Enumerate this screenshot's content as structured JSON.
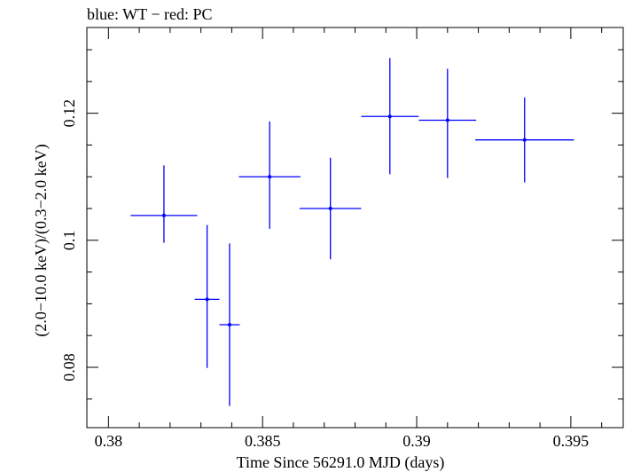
{
  "chart_data": {
    "type": "scatter",
    "title": "blue: WT − red: PC",
    "xlabel": "Time Since 56291.0 MJD (days)",
    "ylabel": "(2.0−10.0 keV)/(0.3−2.0 keV)",
    "xlim": [
      0.3793,
      0.3967
    ],
    "ylim": [
      0.0705,
      0.1335
    ],
    "xticks": [
      {
        "value": 0.38,
        "label": "0.38"
      },
      {
        "value": 0.385,
        "label": "0.385"
      },
      {
        "value": 0.39,
        "label": "0.39"
      },
      {
        "value": 0.395,
        "label": "0.395"
      }
    ],
    "yticks": [
      {
        "value": 0.08,
        "label": "0.08"
      },
      {
        "value": 0.1,
        "label": "0.1"
      },
      {
        "value": 0.12,
        "label": "0.12"
      }
    ],
    "x_minor_step": 0.001,
    "y_minor_step": 0.005,
    "grid": false,
    "series": [
      {
        "color": "#0000ff",
        "points": [
          {
            "x": 0.3818,
            "xerr_lo": 0.00108,
            "xerr_hi": 0.00108,
            "y": 0.1039,
            "yerr_lo": 0.0043,
            "yerr_hi": 0.0079
          },
          {
            "x": 0.3832,
            "xerr_lo": 0.0004,
            "xerr_hi": 0.0004,
            "y": 0.0907,
            "yerr_lo": 0.0108,
            "yerr_hi": 0.0117
          },
          {
            "x": 0.38393,
            "xerr_lo": 0.00033,
            "xerr_hi": 0.00033,
            "y": 0.0867,
            "yerr_lo": 0.0128,
            "yerr_hi": 0.0128
          },
          {
            "x": 0.38523,
            "xerr_lo": 0.001,
            "xerr_hi": 0.001,
            "y": 0.11,
            "yerr_lo": 0.0082,
            "yerr_hi": 0.0087
          },
          {
            "x": 0.3872,
            "xerr_lo": 0.001,
            "xerr_hi": 0.001,
            "y": 0.105,
            "yerr_lo": 0.008,
            "yerr_hi": 0.008
          },
          {
            "x": 0.38913,
            "xerr_lo": 0.00093,
            "xerr_hi": 0.00093,
            "y": 0.1195,
            "yerr_lo": 0.0091,
            "yerr_hi": 0.0092
          },
          {
            "x": 0.391,
            "xerr_lo": 0.00093,
            "xerr_hi": 0.00093,
            "y": 0.1189,
            "yerr_lo": 0.0091,
            "yerr_hi": 0.0081
          },
          {
            "x": 0.3935,
            "xerr_lo": 0.0016,
            "xerr_hi": 0.0016,
            "y": 0.1158,
            "yerr_lo": 0.0067,
            "yerr_hi": 0.0067
          }
        ]
      }
    ]
  }
}
